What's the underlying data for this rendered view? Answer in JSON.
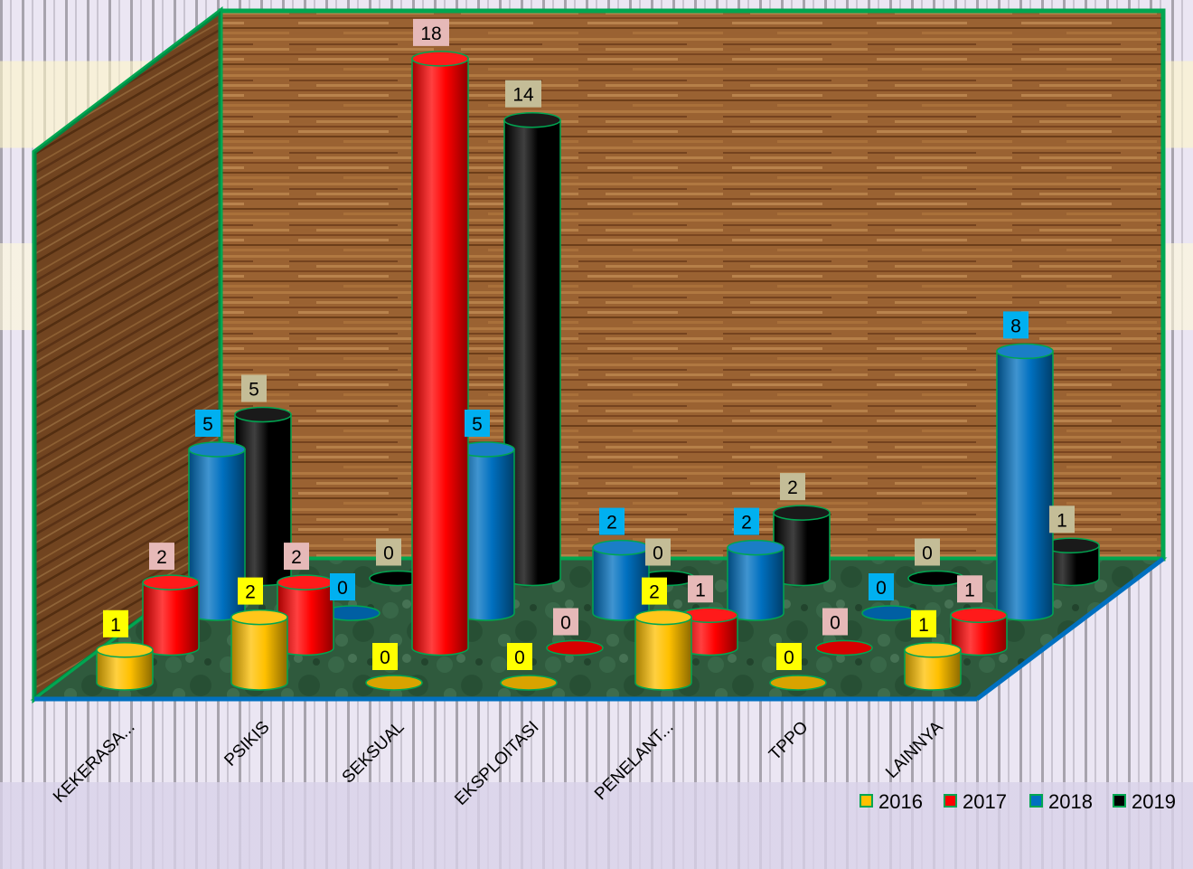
{
  "colors": {
    "s2016": "#ffc000",
    "s2017": "#ff0000",
    "s2018": "#0070c0",
    "s2019": "#000000",
    "label_2016": "#ffff00",
    "label_2017": "#e6b9b8",
    "label_2018": "#00b0f0",
    "label_2019": "#c4bd97",
    "frame": "#00a651",
    "floor_edge": "#0070c0",
    "wood_dark": "#6b3a16",
    "wood_light": "#b67a3e",
    "floor": "#2e5b3c",
    "bg_stripe": "#d9d2e9"
  },
  "chart_data": {
    "type": "bar",
    "subtype": "3d-cylinder",
    "categories": [
      "KEKERASA...",
      "PSIKIS",
      "SEKSUAL",
      "EKSPLOITASI",
      "PENELANT...",
      "TPPO",
      "LAINNYA"
    ],
    "series": [
      {
        "name": "2016",
        "values": [
          1,
          2,
          0,
          0,
          2,
          0,
          1
        ]
      },
      {
        "name": "2017",
        "values": [
          2,
          2,
          18,
          0,
          1,
          0,
          1
        ]
      },
      {
        "name": "2018",
        "values": [
          5,
          0,
          5,
          2,
          2,
          0,
          8
        ]
      },
      {
        "name": "2019",
        "values": [
          5,
          0,
          14,
          0,
          2,
          0,
          1
        ]
      }
    ],
    "title": "",
    "xlabel": "",
    "ylabel": "",
    "ylim": [
      0,
      20
    ],
    "legend_position": "bottom-right",
    "data_labels": true,
    "grid": false
  }
}
